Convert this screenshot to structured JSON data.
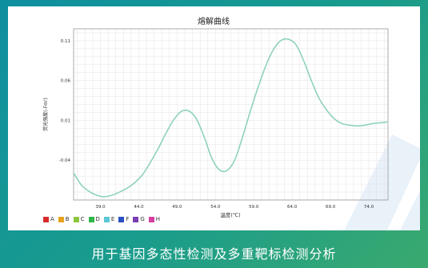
{
  "caption": "用于基因多态性检测及多重靶标检测分析",
  "chart_data": {
    "type": "line",
    "title": "熔解曲线",
    "xlabel": "温度(℃)",
    "ylabel": "荧光强度(-Fm')",
    "xlim": [
      35.5,
      76.5
    ],
    "ylim": [
      -0.09,
      0.125
    ],
    "xticks": [
      39.0,
      44.0,
      49.0,
      54.0,
      59.0,
      64.0,
      69.0,
      74.0
    ],
    "yticks": [
      0.11,
      0.06,
      0.01,
      -0.04
    ],
    "xtick_labels": [
      "39.0",
      "44.0",
      "49.0",
      "54.0",
      "59.0",
      "64.0",
      "69.0",
      "74.0"
    ],
    "ytick_labels": [
      "0.11",
      "0.06",
      "0.01",
      "-0.04"
    ],
    "grid": true,
    "series": [
      {
        "color": "#8fd3b8",
        "x": [
          35.5,
          36.5,
          37.5,
          38.5,
          39.5,
          40.5,
          41.5,
          42.5,
          43.5,
          44.5,
          45.5,
          46.5,
          47.5,
          48.5,
          49.5,
          50.5,
          51.5,
          52.5,
          53.5,
          54.5,
          55.5,
          56.5,
          57.5,
          58.5,
          59.5,
          60.5,
          61.5,
          62.5,
          63.5,
          64.5,
          65.5,
          66.5,
          67.5,
          68.5,
          69.5,
          70.5,
          71.5,
          72.5,
          73.5,
          74.5,
          75.5,
          76.5
        ],
        "y": [
          -0.056,
          -0.071,
          -0.079,
          -0.084,
          -0.086,
          -0.084,
          -0.08,
          -0.075,
          -0.068,
          -0.058,
          -0.043,
          -0.026,
          -0.007,
          0.01,
          0.021,
          0.022,
          0.012,
          -0.01,
          -0.037,
          -0.052,
          -0.053,
          -0.04,
          -0.012,
          0.02,
          0.05,
          0.077,
          0.098,
          0.11,
          0.112,
          0.105,
          0.085,
          0.06,
          0.038,
          0.023,
          0.012,
          0.006,
          0.004,
          0.003,
          0.004,
          0.006,
          0.007,
          0.008
        ]
      }
    ],
    "legend": {
      "placement": "bottom-left",
      "items": [
        {
          "label": "A",
          "color": "#d62b2b"
        },
        {
          "label": "B",
          "color": "#e8a21c"
        },
        {
          "label": "C",
          "color": "#8cc63f"
        },
        {
          "label": "D",
          "color": "#2fb64a"
        },
        {
          "label": "E",
          "color": "#5cc8d6"
        },
        {
          "label": "F",
          "color": "#2b4fc4"
        },
        {
          "label": "G",
          "color": "#7b3fb5"
        },
        {
          "label": "H",
          "color": "#d43fa0"
        }
      ]
    }
  }
}
